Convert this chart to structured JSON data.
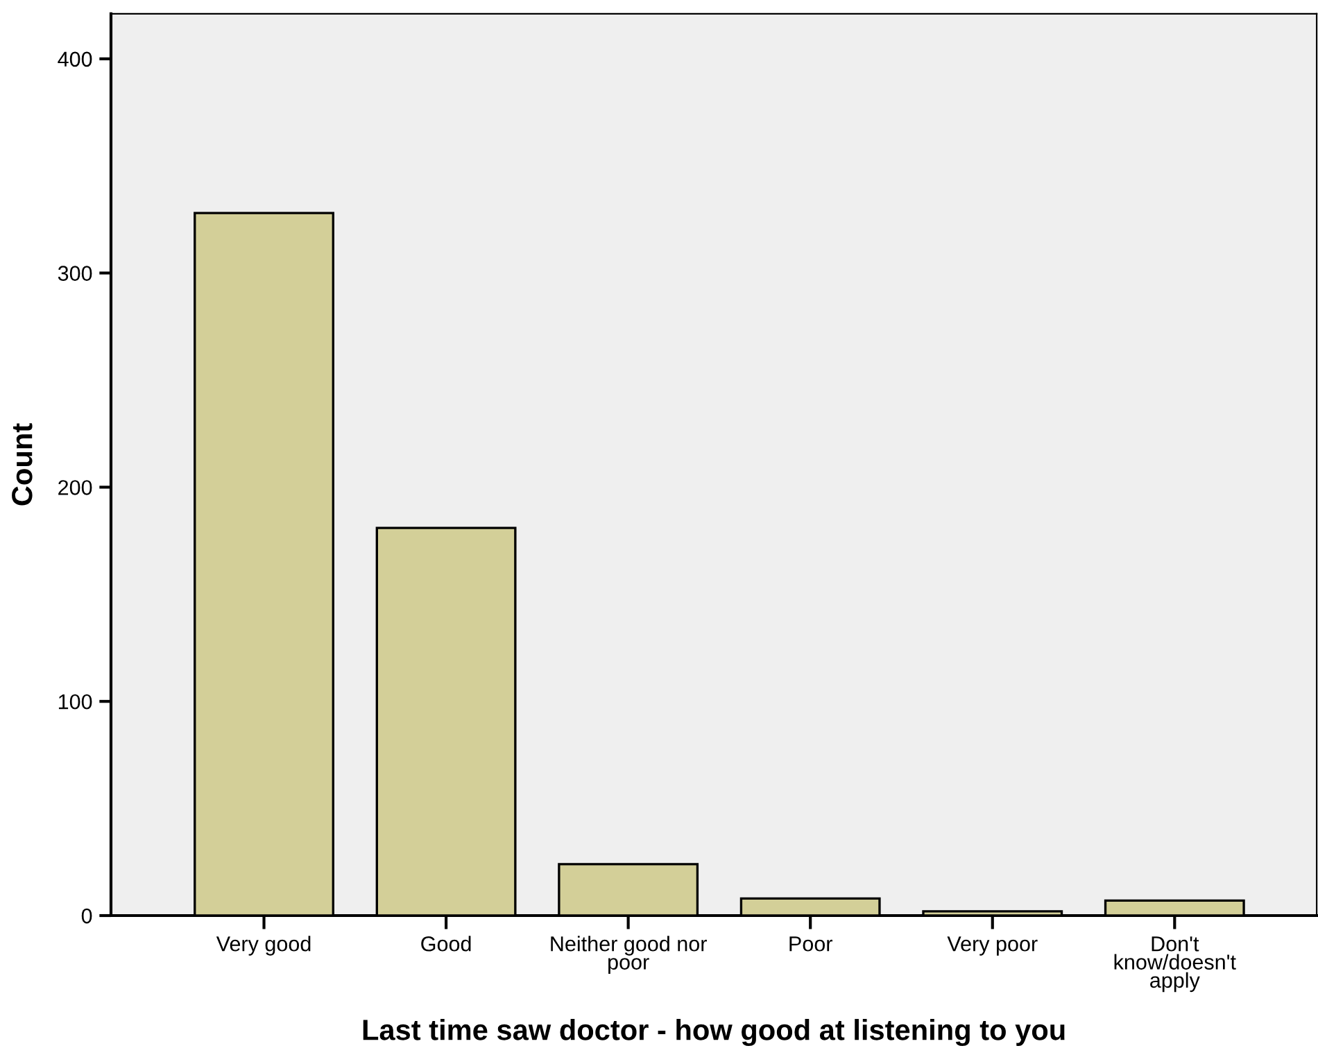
{
  "chart_data": {
    "type": "bar",
    "xlabel": "Last time saw doctor - how good at listening to you",
    "ylabel": "Count",
    "categories": [
      "Very good",
      "Good",
      "Neither good nor\npoor",
      "Poor",
      "Very poor",
      "Don't\nknow/doesn't\napply"
    ],
    "values": [
      328,
      181,
      24,
      8,
      2,
      7
    ],
    "color": "#d3cf98",
    "ylim": [
      0,
      421
    ],
    "yticks": [
      0,
      100,
      200,
      300,
      400
    ],
    "grid": false,
    "legend": false
  }
}
